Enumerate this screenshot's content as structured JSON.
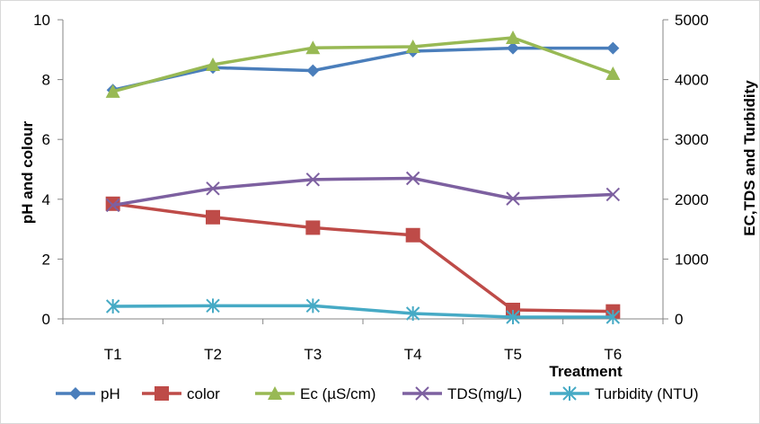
{
  "chart_data": {
    "type": "line",
    "categories": [
      "T1",
      "T2",
      "T3",
      "T4",
      "T5",
      "T6"
    ],
    "xlabel": "Treatment",
    "ylabel_left": "pH and colour",
    "ylabel_right": "EC,TDS and Turbidity",
    "ylim_left": [
      0,
      10
    ],
    "yticks_left": [
      "0",
      "2",
      "4",
      "6",
      "8",
      "10"
    ],
    "ylim_right": [
      0,
      5000
    ],
    "yticks_right": [
      "0",
      "1000",
      "2000",
      "3000",
      "4000",
      "5000"
    ],
    "legend_position": "bottom",
    "grid": false,
    "series": [
      {
        "name": "pH",
        "axis": "left",
        "color": "#4a7ebb",
        "marker": "diamond",
        "values": [
          7.65,
          8.4,
          8.3,
          8.95,
          9.05,
          9.05
        ]
      },
      {
        "name": "color",
        "axis": "left",
        "color": "#be4b48",
        "marker": "square",
        "values": [
          3.85,
          3.4,
          3.05,
          2.8,
          0.3,
          0.25
        ]
      },
      {
        "name": "Ec (µS/cm)",
        "axis": "right",
        "color": "#98b954",
        "marker": "triangle",
        "values": [
          3800,
          4250,
          4530,
          4550,
          4700,
          4100
        ]
      },
      {
        "name": "TDS(mg/L)",
        "axis": "right",
        "color": "#7d60a0",
        "marker": "x",
        "values": [
          1900,
          2180,
          2330,
          2350,
          2010,
          2080
        ]
      },
      {
        "name": "Turbidity (NTU)",
        "axis": "right",
        "color": "#46aac5",
        "marker": "star",
        "values": [
          210,
          220,
          220,
          90,
          30,
          30
        ]
      }
    ]
  }
}
